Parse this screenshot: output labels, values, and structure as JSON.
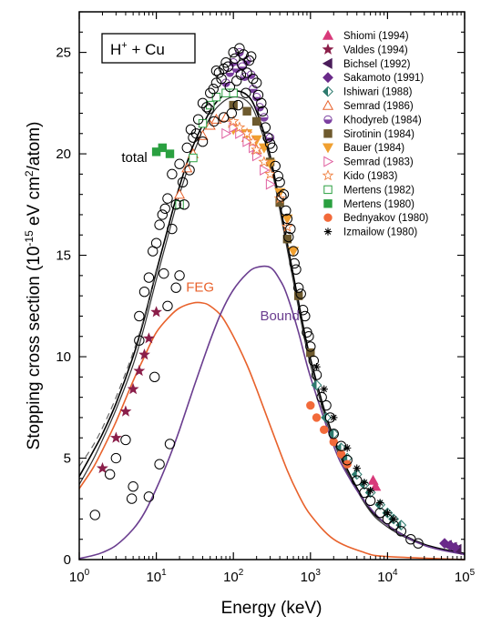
{
  "chart_data": {
    "type": "line",
    "title": "H⁺ + Cu",
    "title_parts": {
      "base": "H",
      "sup": "+",
      "rest": " + Cu"
    },
    "xlabel": "Energy (keV)",
    "ylabel_parts": {
      "pre": "Stopping cross section (10",
      "sup1": "-15",
      "mid": " eV cm",
      "sup2": "2",
      "post": "/atom)"
    },
    "x_scale": "log",
    "xlim": [
      1,
      100000
    ],
    "ylim": [
      0,
      27
    ],
    "x_ticks": [
      {
        "value": 1,
        "base": "10",
        "exp": "0"
      },
      {
        "value": 10,
        "base": "10",
        "exp": "1"
      },
      {
        "value": 100,
        "base": "10",
        "exp": "2"
      },
      {
        "value": 1000,
        "base": "10",
        "exp": "3"
      },
      {
        "value": 10000,
        "base": "10",
        "exp": "4"
      },
      {
        "value": 100000,
        "base": "10",
        "exp": "5"
      }
    ],
    "y_ticks": [
      0,
      5,
      10,
      15,
      20,
      25
    ],
    "grid": false,
    "legend_position": "top-right",
    "annotations": [
      {
        "text": "total",
        "x": 5.2,
        "y": 19.6,
        "color": "#000000"
      },
      {
        "text": "FEG",
        "x": 37,
        "y": 13.2,
        "color": "#e8622c"
      },
      {
        "text": "Bound",
        "x": 400,
        "y": 11.8,
        "color": "#6a3d8f"
      }
    ],
    "curves": [
      {
        "name": "total",
        "color": "#000000",
        "dash": "none",
        "width": 1.6,
        "x": [
          1,
          1.5,
          2,
          3,
          5,
          7,
          10,
          15,
          20,
          30,
          50,
          70,
          100,
          150,
          200,
          300,
          500,
          700,
          1000,
          2000,
          5000,
          10000,
          30000,
          100000
        ],
        "y": [
          4.1,
          5.3,
          6.2,
          7.7,
          10.0,
          11.9,
          14.2,
          16.7,
          18.4,
          20.4,
          22.1,
          22.8,
          23.1,
          22.9,
          22.1,
          19.9,
          15.6,
          12.7,
          9.9,
          6.0,
          2.9,
          1.7,
          0.75,
          0.3
        ]
      },
      {
        "name": "total-lower",
        "color": "#333333",
        "dash": "none",
        "width": 1.2,
        "x": [
          1,
          1.5,
          2,
          3,
          5,
          7,
          10,
          15,
          20,
          30,
          50,
          70,
          100,
          150,
          200,
          300,
          500,
          700,
          1000,
          2000,
          5000,
          10000,
          30000,
          100000
        ],
        "y": [
          3.7,
          4.9,
          5.9,
          7.4,
          9.6,
          11.5,
          13.8,
          16.3,
          18.0,
          20.0,
          21.8,
          22.5,
          22.8,
          22.6,
          21.8,
          19.6,
          15.3,
          12.4,
          9.6,
          5.8,
          2.8,
          1.6,
          0.7,
          0.25
        ]
      },
      {
        "name": "total-dashed",
        "color": "#666666",
        "dash": "7,5",
        "width": 1.2,
        "x": [
          1,
          1.5,
          2,
          3,
          5,
          7,
          10
        ],
        "y": [
          4.6,
          5.6,
          6.5,
          8.0,
          10.2,
          12.0,
          14.3
        ]
      },
      {
        "name": "FEG",
        "color": "#e8622c",
        "dash": "none",
        "width": 1.6,
        "x": [
          1,
          1.5,
          2,
          3,
          5,
          7,
          10,
          15,
          20,
          30,
          40,
          50,
          70,
          100,
          150,
          200,
          300,
          500,
          700,
          1000,
          2000,
          5000,
          10000,
          100000
        ],
        "y": [
          3.5,
          4.5,
          5.4,
          6.8,
          8.8,
          10.0,
          11.2,
          12.0,
          12.4,
          12.65,
          12.65,
          12.5,
          12.0,
          11.0,
          9.6,
          8.4,
          6.6,
          4.4,
          3.2,
          2.2,
          1.0,
          0.35,
          0.15,
          0.0
        ]
      },
      {
        "name": "Bound",
        "color": "#6a3d8f",
        "dash": "none",
        "width": 1.6,
        "x": [
          1,
          1.5,
          2,
          3,
          5,
          7,
          10,
          15,
          20,
          30,
          50,
          70,
          100,
          150,
          200,
          300,
          400,
          500,
          700,
          1000,
          2000,
          3000,
          5000,
          10000,
          30000,
          100000
        ],
        "y": [
          0.05,
          0.2,
          0.35,
          0.7,
          1.5,
          2.3,
          3.5,
          5.1,
          6.4,
          8.4,
          10.8,
          12.2,
          13.3,
          14.1,
          14.4,
          14.4,
          13.8,
          13.0,
          11.2,
          9.0,
          5.6,
          4.2,
          2.9,
          1.7,
          0.7,
          0.25
        ]
      }
    ],
    "series": [
      {
        "name": "Shiomi (1994)",
        "marker": "triangle",
        "color": "#d83a7a",
        "filled": true,
        "x": [
          6500,
          7000
        ],
        "y": [
          3.9,
          3.6
        ]
      },
      {
        "name": "Valdes (1994)",
        "marker": "star",
        "color": "#8b1f4a",
        "filled": true,
        "x": [
          2,
          3,
          4,
          5,
          6,
          7,
          8,
          10
        ],
        "y": [
          4.5,
          6.0,
          7.3,
          8.4,
          9.3,
          10.1,
          10.9,
          12.2
        ]
      },
      {
        "name": "Bichsel (1992)",
        "marker": "triangle-left",
        "color": "#4a1d5a",
        "filled": true,
        "x": [
          60000,
          70000,
          80000
        ],
        "y": [
          0.7,
          0.6,
          0.5
        ]
      },
      {
        "name": "Sakamoto (1991)",
        "marker": "diamond",
        "color": "#6a2a8a",
        "filled": true,
        "x": [
          55000,
          65000,
          75000
        ],
        "y": [
          0.8,
          0.7,
          0.6
        ]
      },
      {
        "name": "Ishiwari (1988)",
        "marker": "diamond-half",
        "color": "#2d7a6e",
        "filled": false,
        "x": [
          1200,
          1600,
          2000,
          2500,
          3000,
          4000,
          5000,
          6000,
          8000,
          10000,
          12000,
          15000
        ],
        "y": [
          8.6,
          7.0,
          6.2,
          5.5,
          5.0,
          4.2,
          3.7,
          3.3,
          2.7,
          2.3,
          2.0,
          1.7
        ]
      },
      {
        "name": "Semrad (1986)",
        "marker": "triangle-open",
        "color": "#e8622c",
        "filled": false,
        "x": [
          20,
          25,
          30,
          40,
          50,
          60,
          80,
          100,
          150,
          200
        ],
        "y": [
          18.0,
          19.3,
          20.0,
          20.9,
          21.4,
          21.7,
          21.8,
          21.5,
          20.8,
          20.2
        ]
      },
      {
        "name": "Khodyreb (1984)",
        "marker": "circle-half",
        "color": "#7b3fa0",
        "filled": true,
        "x": [
          80,
          90,
          100,
          110,
          120,
          130,
          140,
          150,
          170,
          180,
          200,
          220,
          250,
          300
        ],
        "y": [
          23.5,
          24.0,
          24.5,
          24.2,
          25.0,
          24.3,
          23.8,
          24.6,
          23.9,
          23.2,
          22.8,
          22.3,
          21.8,
          20.8
        ]
      },
      {
        "name": "Sirotinin (1984)",
        "marker": "square",
        "color": "#6e5a2e",
        "filled": true,
        "x": [
          100,
          150,
          200,
          300,
          400,
          500,
          700,
          1000
        ],
        "y": [
          22.4,
          22.1,
          21.6,
          19.6,
          17.6,
          15.8,
          13.0,
          10.2
        ]
      },
      {
        "name": "Bauer (1984)",
        "marker": "triangle-down",
        "color": "#f0a030",
        "filled": true,
        "x": [
          100,
          150,
          200,
          250,
          300,
          400,
          500,
          600
        ],
        "y": [
          21.2,
          21.0,
          20.7,
          20.3,
          19.5,
          18.1,
          16.8,
          15.2
        ]
      },
      {
        "name": "Semrad (1983)",
        "marker": "triangle-right",
        "color": "#e060a0",
        "filled": false,
        "x": [
          80,
          100,
          120,
          150,
          180,
          200,
          250,
          300
        ],
        "y": [
          21.0,
          21.3,
          21.0,
          20.6,
          20.3,
          19.9,
          19.2,
          18.5
        ]
      },
      {
        "name": "Kido (1983)",
        "marker": "star-open",
        "color": "#f08040",
        "filled": false,
        "x": [
          100,
          120,
          150,
          180,
          200,
          250,
          300,
          400,
          500
        ],
        "y": [
          21.6,
          21.3,
          21.0,
          20.6,
          20.2,
          19.6,
          19.0,
          17.8,
          16.4
        ]
      },
      {
        "name": "Mertens (1982)",
        "marker": "square-open",
        "color": "#2aa040",
        "filled": false,
        "x": [
          20,
          30,
          40,
          50,
          60,
          80,
          100
        ],
        "y": [
          17.5,
          19.8,
          21.5,
          22.4,
          22.8,
          23.0,
          23.0
        ]
      },
      {
        "name": "Mertens (1980)",
        "marker": "square",
        "color": "#2aa040",
        "filled": true,
        "x": [
          10,
          12,
          15
        ],
        "y": [
          20.1,
          20.3,
          20.0
        ]
      },
      {
        "name": "Bednyakov (1980)",
        "marker": "circle",
        "color": "#f26a3a",
        "filled": true,
        "x": [
          1000,
          1200,
          1500,
          2000,
          2500,
          3000
        ],
        "y": [
          7.6,
          7.0,
          6.4,
          5.8,
          5.2,
          4.7
        ]
      },
      {
        "name": "Izmailow (1980)",
        "marker": "asterisk",
        "color": "#000000",
        "filled": false,
        "x": [
          1200,
          1500,
          2000,
          3000,
          4000,
          5000,
          6000,
          8000,
          10000,
          12000
        ],
        "y": [
          9.5,
          8.4,
          7.0,
          5.5,
          4.5,
          3.8,
          3.4,
          2.8,
          2.3,
          2.0
        ]
      },
      {
        "name": "open circles",
        "marker": "circle-open",
        "color": "#000000",
        "filled": false,
        "legend": false,
        "x": [
          1.6,
          2.5,
          3.0,
          4.0,
          4.8,
          5.0,
          6.0,
          7.0,
          8.0,
          9.0,
          10,
          11,
          12,
          13,
          14,
          15,
          16,
          18,
          20,
          22,
          25,
          28,
          30,
          35,
          40,
          45,
          50,
          55,
          60,
          65,
          70,
          75,
          80,
          90,
          100,
          110,
          120,
          130,
          150,
          170,
          200,
          230,
          260,
          300,
          350,
          400,
          450,
          500,
          550,
          600,
          650,
          700,
          800,
          900,
          1000,
          1100,
          1200,
          1400,
          1600,
          1800,
          2000,
          2500,
          3000,
          4000,
          5000,
          6000,
          8000,
          10000,
          12000,
          15000,
          20000,
          25000,
          6.0,
          8.0,
          9.5,
          11,
          12.5,
          14,
          16,
          18,
          20,
          23,
          27,
          33,
          40,
          48,
          56,
          60,
          75,
          85,
          95,
          105,
          115,
          125,
          135,
          145,
          160,
          180,
          210,
          240,
          280,
          320,
          380,
          420,
          480,
          520,
          620,
          750,
          850,
          950
        ],
        "y": [
          2.2,
          4.2,
          5.0,
          5.9,
          3.0,
          3.6,
          12.0,
          13.2,
          13.9,
          15.2,
          15.6,
          16.5,
          17.0,
          17.3,
          17.8,
          5.7,
          19.0,
          17.5,
          19.5,
          18.6,
          20.3,
          21.2,
          20.8,
          21.7,
          22.5,
          22.3,
          23.0,
          23.2,
          23.5,
          24.0,
          23.7,
          24.2,
          24.5,
          23.3,
          25.0,
          23.6,
          25.2,
          24.4,
          24.0,
          24.8,
          23.5,
          22.5,
          21.3,
          20.5,
          19.4,
          18.6,
          18.0,
          16.8,
          16.3,
          15.2,
          14.3,
          13.4,
          12.3,
          11.2,
          10.5,
          9.8,
          9.1,
          8.0,
          7.6,
          7.0,
          6.2,
          5.6,
          4.9,
          3.9,
          3.3,
          2.9,
          2.3,
          2.0,
          1.7,
          1.4,
          1.0,
          0.8,
          10.8,
          3.1,
          9.0,
          4.7,
          14.1,
          12.5,
          16.3,
          13.4,
          14.0,
          17.5,
          19.2,
          21.0,
          20.6,
          22.2,
          21.6,
          24.1,
          21.8,
          24.3,
          22.0,
          24.7,
          22.4,
          23.9,
          24.9,
          23.0,
          24.6,
          23.7,
          22.9,
          22.1,
          20.8,
          20.3,
          18.9,
          17.9,
          17.2,
          15.9,
          14.6,
          13.1,
          12.0,
          11.0
        ]
      }
    ]
  }
}
